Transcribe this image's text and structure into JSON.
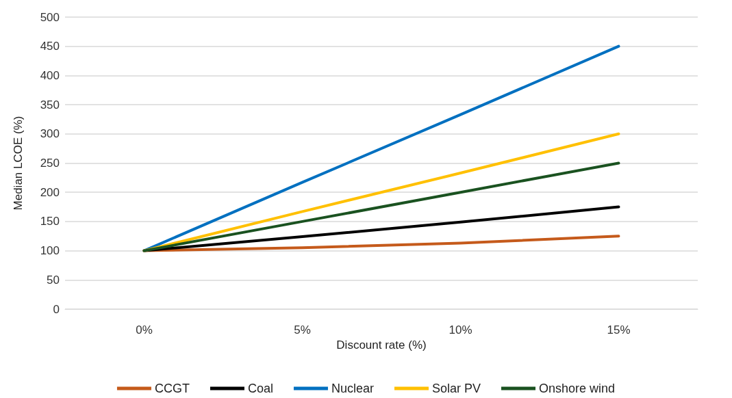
{
  "chart_data": {
    "type": "line",
    "xlabel": "Discount rate (%)",
    "ylabel": "Median LCOE (%)",
    "categories": [
      "0%",
      "5%",
      "10%",
      "15%"
    ],
    "series": [
      {
        "name": "CCGT",
        "color": "#c55a1b",
        "values": [
          100,
          105,
          113,
          125
        ]
      },
      {
        "name": "Coal",
        "color": "#000000",
        "values": [
          100,
          124,
          149,
          175
        ]
      },
      {
        "name": "Nuclear",
        "color": "#0070c0",
        "values": [
          100,
          217,
          333,
          450
        ]
      },
      {
        "name": "Solar PV",
        "color": "#ffc000",
        "values": [
          100,
          167,
          233,
          300
        ]
      },
      {
        "name": "Onshore wind",
        "color": "#1a5220",
        "values": [
          100,
          150,
          200,
          250
        ]
      }
    ],
    "ylim": [
      0,
      500
    ],
    "yticks": [
      0,
      50,
      100,
      150,
      200,
      250,
      300,
      350,
      400,
      450,
      500
    ],
    "grid": "y",
    "legend": "bottom",
    "marker": "none",
    "line_style": "solid"
  }
}
